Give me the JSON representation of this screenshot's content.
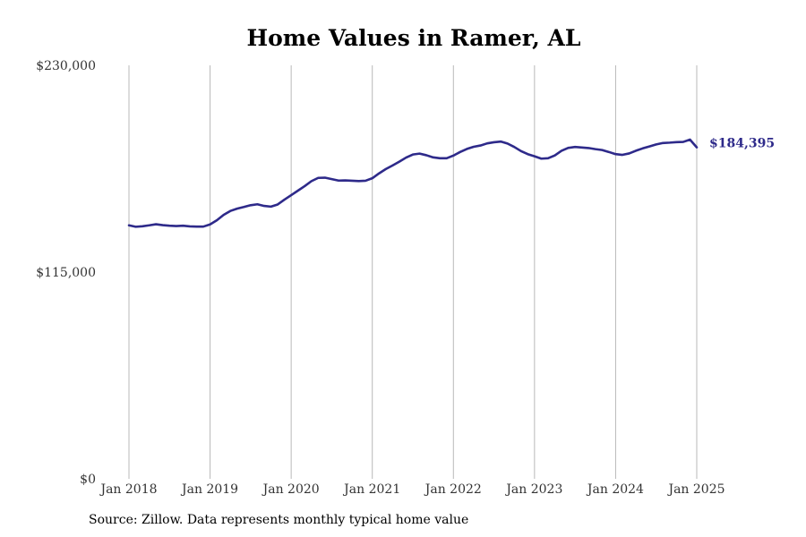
{
  "colors": {
    "line": "#2e2a8a",
    "gridline": "#b8b8b8",
    "end_label": "#2e2a8a"
  },
  "chart_data": {
    "type": "line",
    "title": "Home Values in Ramer, AL",
    "xlabel": "",
    "ylabel": "",
    "ylim": [
      0,
      230000
    ],
    "y_ticks": [
      {
        "value": 0,
        "label": "$0"
      },
      {
        "value": 115000,
        "label": "$115,000"
      },
      {
        "value": 230000,
        "label": "$230,000"
      }
    ],
    "x_ticks": [
      {
        "date": "2018-01",
        "label": "Jan 2018"
      },
      {
        "date": "2019-01",
        "label": "Jan 2019"
      },
      {
        "date": "2020-01",
        "label": "Jan 2020"
      },
      {
        "date": "2021-01",
        "label": "Jan 2021"
      },
      {
        "date": "2022-01",
        "label": "Jan 2022"
      },
      {
        "date": "2023-01",
        "label": "Jan 2023"
      },
      {
        "date": "2024-01",
        "label": "Jan 2024"
      },
      {
        "date": "2025-01",
        "label": "Jan 2025"
      }
    ],
    "grid": "vertical",
    "end_label": "$184,395",
    "series": [
      {
        "x": [
          "2018-01",
          "2018-02",
          "2018-03",
          "2018-04",
          "2018-05",
          "2018-06",
          "2018-07",
          "2018-08",
          "2018-09",
          "2018-10",
          "2018-11",
          "2018-12",
          "2019-01",
          "2019-02",
          "2019-03",
          "2019-04",
          "2019-05",
          "2019-06",
          "2019-07",
          "2019-08",
          "2019-09",
          "2019-10",
          "2019-11",
          "2019-12",
          "2020-01",
          "2020-02",
          "2020-03",
          "2020-04",
          "2020-05",
          "2020-06",
          "2020-07",
          "2020-08",
          "2020-09",
          "2020-10",
          "2020-11",
          "2020-12",
          "2021-01",
          "2021-02",
          "2021-03",
          "2021-04",
          "2021-05",
          "2021-06",
          "2021-07",
          "2021-08",
          "2021-09",
          "2021-10",
          "2021-11",
          "2021-12",
          "2022-01",
          "2022-02",
          "2022-03",
          "2022-04",
          "2022-05",
          "2022-06",
          "2022-07",
          "2022-08",
          "2022-09",
          "2022-10",
          "2022-11",
          "2022-12",
          "2023-01",
          "2023-02",
          "2023-03",
          "2023-04",
          "2023-05",
          "2023-06",
          "2023-07",
          "2023-08",
          "2023-09",
          "2023-10",
          "2023-11",
          "2023-12",
          "2024-01",
          "2024-02",
          "2024-03",
          "2024-04",
          "2024-05",
          "2024-06",
          "2024-07",
          "2024-08",
          "2024-09",
          "2024-10",
          "2024-11",
          "2024-12",
          "2025-01"
        ],
        "values": [
          141000,
          140200,
          140500,
          141000,
          141600,
          141100,
          140800,
          140600,
          140800,
          140400,
          140300,
          140300,
          141500,
          143800,
          146800,
          149000,
          150300,
          151200,
          152200,
          152700,
          151800,
          151400,
          152600,
          155300,
          157800,
          160300,
          162800,
          165600,
          167400,
          167500,
          166700,
          165900,
          166000,
          165800,
          165600,
          165800,
          167200,
          169900,
          172300,
          174300,
          176400,
          178700,
          180400,
          180900,
          180000,
          178800,
          178300,
          178300,
          179800,
          181800,
          183500,
          184700,
          185400,
          186600,
          187200,
          187600,
          186500,
          184600,
          182300,
          180600,
          179400,
          178100,
          178300,
          179900,
          182500,
          184100,
          184600,
          184300,
          184000,
          183400,
          182900,
          181800,
          180600,
          180200,
          181000,
          182500,
          183800,
          184900,
          186000,
          186800,
          187000,
          187300,
          187400,
          188700,
          184395
        ]
      }
    ]
  },
  "source_text": "Source: Zillow. Data represents monthly typical home value"
}
